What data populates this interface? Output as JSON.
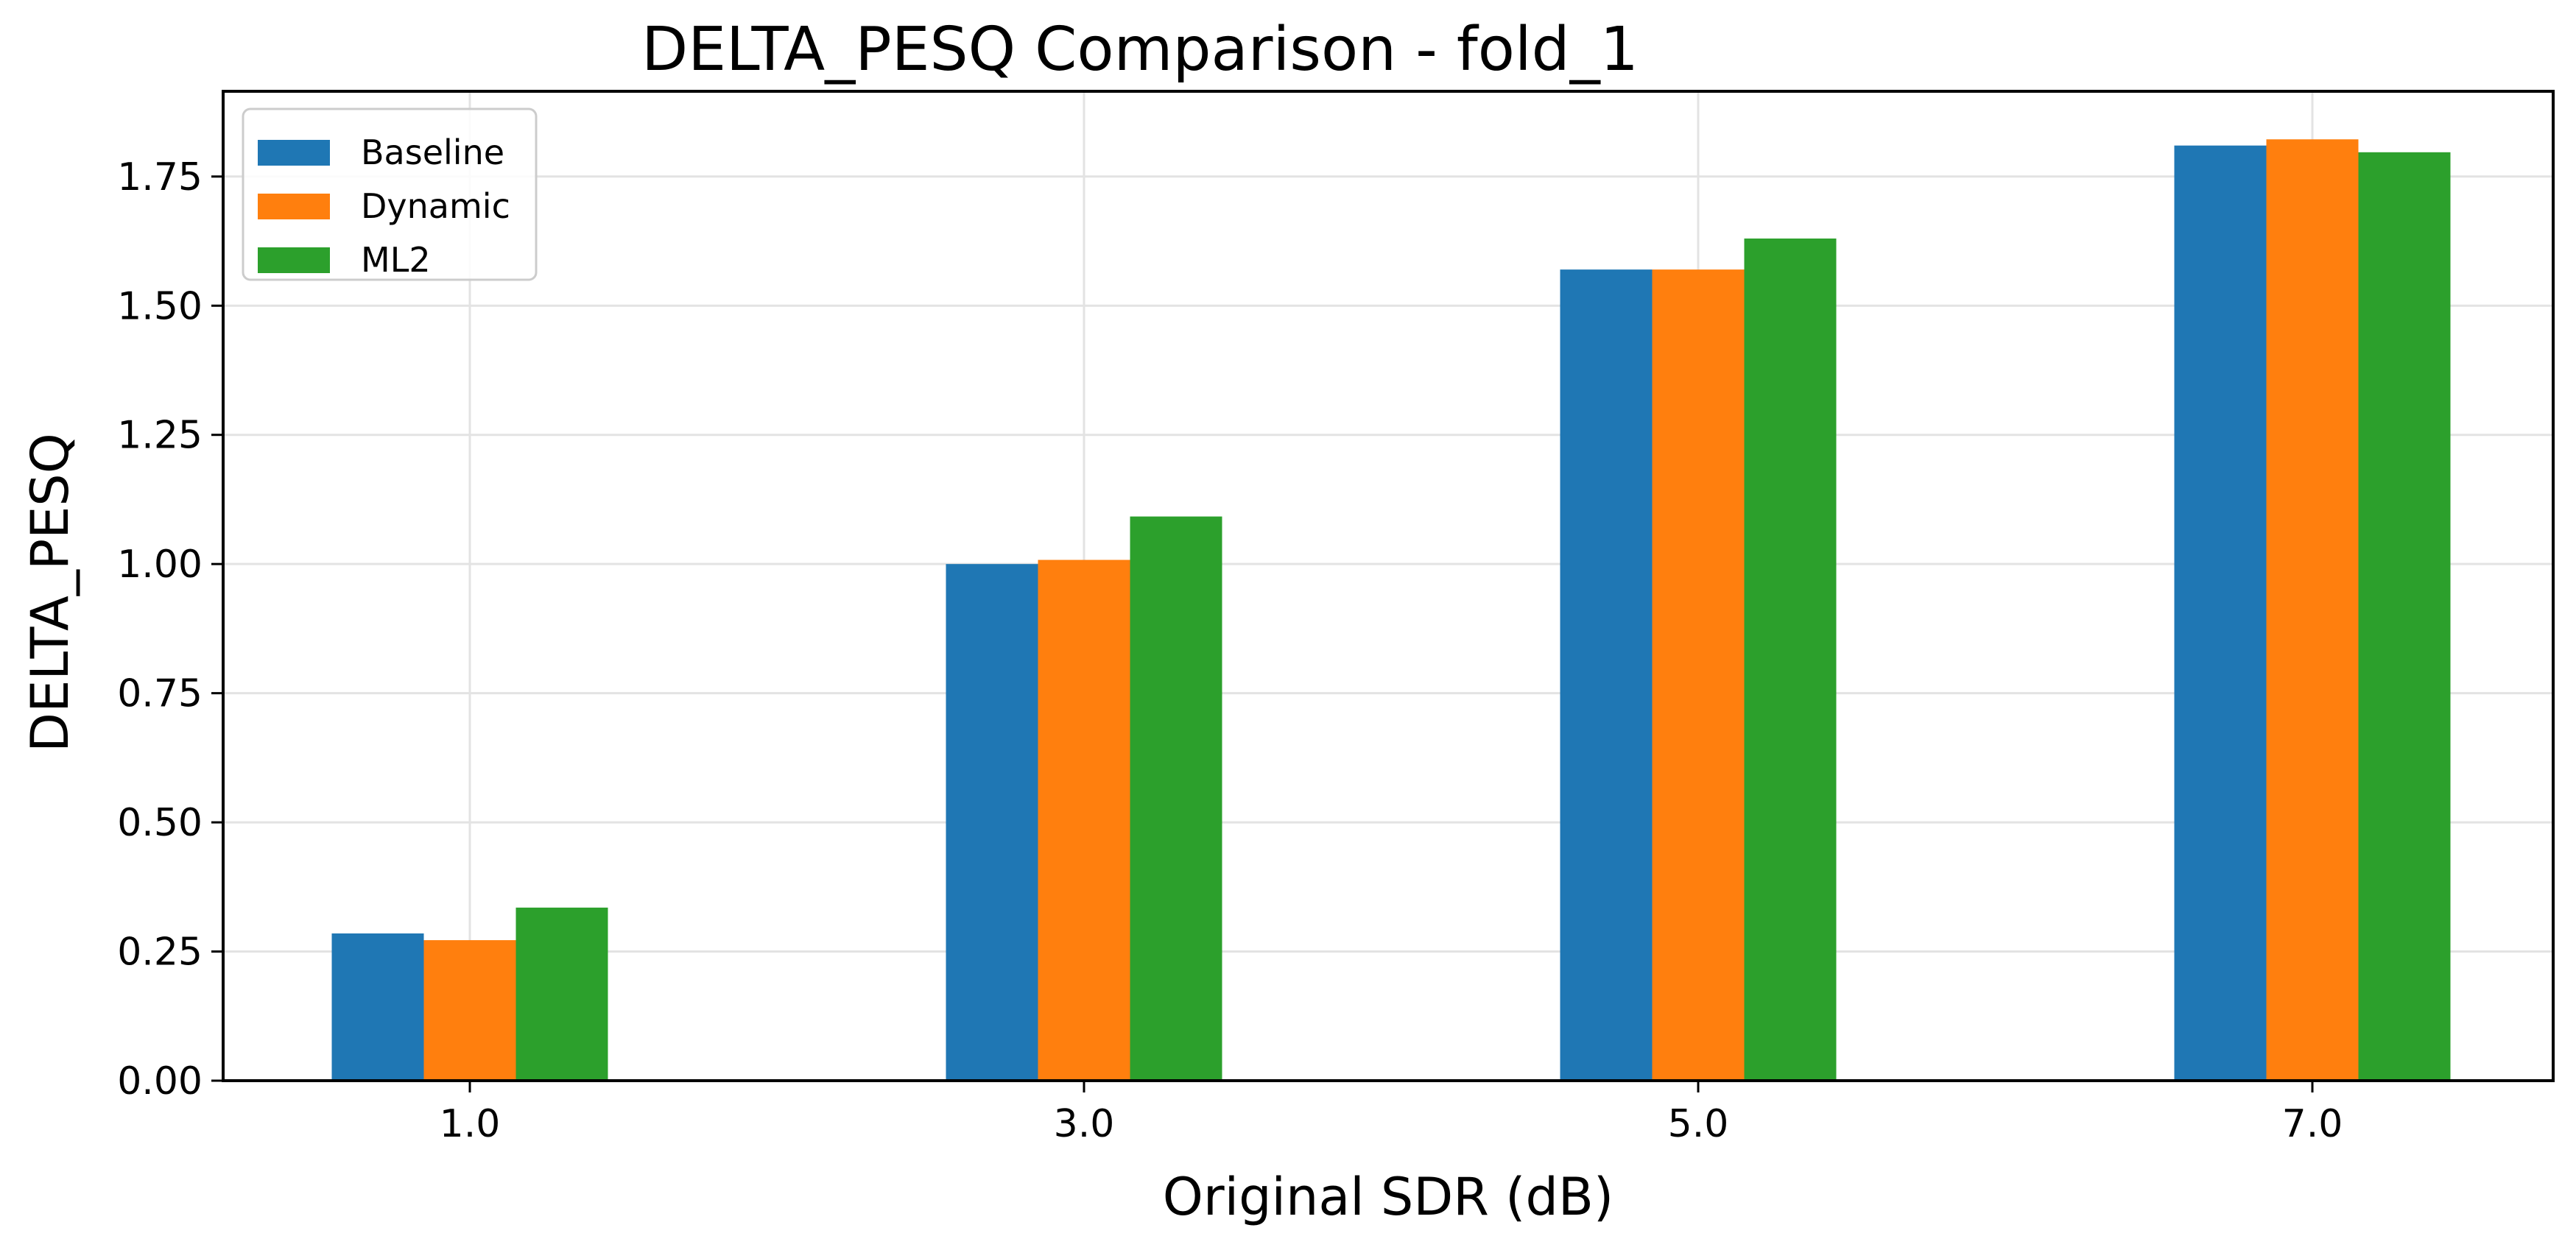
{
  "chart_data": {
    "type": "bar",
    "title": "DELTA_PESQ Comparison - fold_1",
    "xlabel": "Original SDR (dB)",
    "ylabel": "DELTA_PESQ",
    "categories": [
      "1.0",
      "3.0",
      "5.0",
      "7.0"
    ],
    "series": [
      {
        "name": "Baseline",
        "color": "#1f77b4",
        "values": [
          0.285,
          1.0,
          1.57,
          1.81
        ]
      },
      {
        "name": "Dynamic",
        "color": "#ff7f0e",
        "values": [
          0.272,
          1.008,
          1.57,
          1.822
        ]
      },
      {
        "name": "ML2",
        "color": "#2ca02c",
        "values": [
          0.335,
          1.092,
          1.63,
          1.797
        ]
      }
    ],
    "ylim": [
      0,
      1.915
    ],
    "yticks": [
      "0.00",
      "0.25",
      "0.50",
      "0.75",
      "1.00",
      "1.25",
      "1.50",
      "1.75"
    ],
    "grid": true,
    "legend_position": "upper left"
  }
}
